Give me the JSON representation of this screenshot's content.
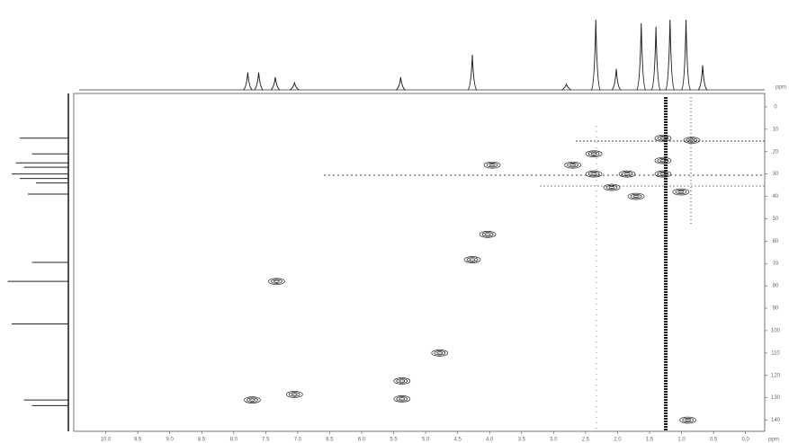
{
  "chart_data": {
    "type": "hsqc",
    "color": "#222222",
    "x_label": "ppm",
    "y_label": "ppm",
    "xlim": [
      10.5,
      -0.3
    ],
    "ylim": [
      -6,
      145
    ],
    "xticks": [
      {
        "value": 10,
        "label": "10.0"
      },
      9.5,
      {
        "value": 9,
        "label": "9.0"
      },
      8.5,
      {
        "value": 8,
        "label": "8.0"
      },
      7.5,
      {
        "value": 7,
        "label": "7.0"
      },
      6.5,
      {
        "value": 6,
        "label": "6.0"
      },
      5.5,
      {
        "value": 5,
        "label": "5.0"
      },
      4.5,
      {
        "value": 4,
        "label": "4.0"
      },
      3.5,
      {
        "value": 3,
        "label": "3.0"
      },
      2.5,
      {
        "value": 2,
        "label": "2.0"
      },
      1.5,
      {
        "value": 1,
        "label": "1.0"
      },
      0.5,
      {
        "value": 0,
        "label": "0.0"
      }
    ],
    "yticks": [
      0,
      10,
      20,
      30,
      40,
      50,
      60,
      70,
      80,
      90,
      100,
      110,
      120,
      130,
      140
    ],
    "peaks": {
      "x": [
        7.71,
        7.05,
        5.37,
        5.37,
        4.78,
        4.27,
        4.03,
        7.33,
        2.37,
        2.37,
        1.29,
        0.84,
        1.29,
        1.01,
        1.71,
        2.7,
        1.85,
        1.29,
        2.09,
        3.96,
        0.9
      ],
      "y": [
        131,
        128.5,
        130.5,
        122.5,
        110,
        68.3,
        57,
        78,
        21,
        30,
        14,
        14.9,
        30,
        38,
        40,
        26,
        30,
        24,
        36,
        26,
        140
      ]
    },
    "top_spectrum": {
      "x": [
        7.78,
        7.61,
        7.35,
        7.05,
        5.39,
        4.27,
        2.8,
        2.34,
        2.02,
        1.63,
        1.4,
        1.18,
        0.93,
        0.67
      ],
      "values": [
        25,
        25,
        18,
        10,
        18,
        50,
        8,
        100,
        30,
        95,
        90,
        100,
        100,
        35
      ]
    },
    "left_spectrum": {
      "y": [
        14,
        21,
        25,
        27,
        30,
        32,
        34,
        39,
        69.5,
        78,
        97,
        131,
        133.5
      ],
      "values": [
        60,
        45,
        65,
        55,
        70,
        60,
        40,
        50,
        45,
        75,
        70,
        55,
        45
      ]
    }
  }
}
